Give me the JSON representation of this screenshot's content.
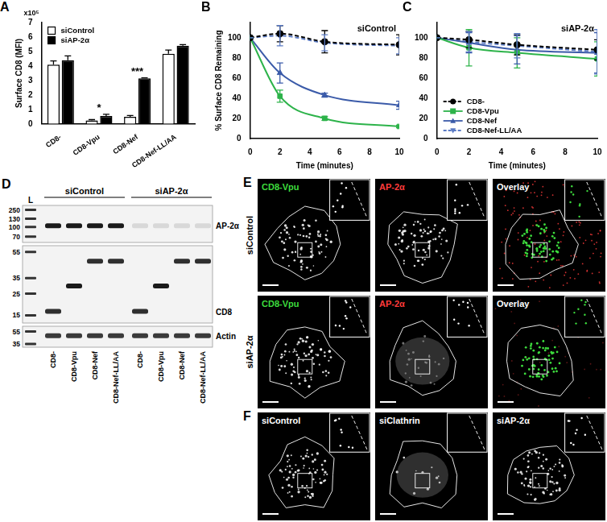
{
  "chart_data": [
    {
      "panel": "A",
      "type": "bar",
      "categories": [
        "CD8-",
        "CD8-Vpu",
        "CD8-Nef",
        "CD8-Nef-LL/AA"
      ],
      "series": [
        {
          "name": "siControl",
          "color": "#ffffff",
          "values": [
            4.1,
            0.25,
            0.5,
            4.85
          ],
          "errors": [
            0.25,
            0.05,
            0.08,
            0.25
          ]
        },
        {
          "name": "siAP-2α",
          "color": "#000000",
          "values": [
            4.4,
            0.55,
            3.15,
            5.4
          ],
          "errors": [
            0.3,
            0.12,
            0.03,
            0.08
          ]
        }
      ],
      "ylabel": "Surface CD8 (MFI)",
      "y_scale_label": "x10⁵",
      "ylim": [
        0,
        7
      ],
      "yticks": [
        0,
        1,
        2,
        3,
        4,
        5,
        6,
        7
      ],
      "grid": false,
      "legend": "upper left",
      "annotations": [
        {
          "text": "*",
          "category": "CD8-Vpu"
        },
        {
          "text": "***",
          "category": "CD8-Nef"
        }
      ]
    },
    {
      "panel": "B",
      "type": "line",
      "title": "siControl",
      "x": [
        0,
        2,
        5,
        10
      ],
      "series": [
        {
          "color": "#000000",
          "marker": "circle",
          "line_style": "dashed",
          "values": [
            100,
            104,
            96,
            93
          ],
          "errors": [
            0,
            8,
            11,
            10
          ]
        },
        {
          "color": "#2db34a",
          "marker": "square",
          "line_style": "solid",
          "values": [
            100,
            42,
            20,
            12
          ],
          "errors": [
            0,
            6,
            2,
            1
          ]
        },
        {
          "color": "#3b5ba9",
          "marker": "triangle",
          "line_style": "solid",
          "values": [
            100,
            65,
            43,
            33
          ],
          "errors": [
            0,
            10,
            2,
            4
          ]
        },
        {
          "color": "#5b7bc4",
          "marker": "triangle_down",
          "line_style": "dashed",
          "values": [
            100,
            102,
            95,
            92
          ],
          "errors": [
            0,
            10,
            8,
            8
          ]
        }
      ],
      "xlabel": "Time (minutes)",
      "ylabel": "% Surface CD8 Remaining",
      "xlim": [
        0,
        10
      ],
      "xticks": [
        0,
        2,
        4,
        6,
        8,
        10
      ],
      "ylim": [
        0,
        115
      ],
      "yticks": [
        0,
        20,
        40,
        60,
        80,
        100
      ],
      "grid": false
    },
    {
      "panel": "C",
      "type": "line",
      "title": "siAP-2α",
      "x": [
        0,
        2,
        5,
        10
      ],
      "series": [
        {
          "name": "CD8-",
          "color": "#000000",
          "marker": "circle",
          "line_style": "dashed",
          "values": [
            100,
            98,
            93,
            88
          ],
          "errors": [
            0,
            8,
            10,
            10
          ]
        },
        {
          "name": "CD8-Vpu",
          "color": "#2db34a",
          "marker": "square",
          "line_style": "solid",
          "values": [
            100,
            90,
            85,
            79
          ],
          "errors": [
            0,
            18,
            15,
            17
          ]
        },
        {
          "name": "CD8-Nef",
          "color": "#3b5ba9",
          "marker": "triangle",
          "line_style": "solid",
          "values": [
            100,
            95,
            88,
            85
          ],
          "errors": [
            0,
            10,
            14,
            20
          ]
        },
        {
          "name": "CD8-Nef-LL/AA",
          "color": "#5b7bc4",
          "marker": "triangle_down",
          "line_style": "dashed",
          "values": [
            100,
            96,
            92,
            86
          ],
          "errors": [
            0,
            10,
            12,
            22
          ]
        }
      ],
      "xlabel": "Time (minutes)",
      "xlim": [
        0,
        10
      ],
      "xticks": [
        0,
        2,
        4,
        6,
        8,
        10
      ],
      "ylim": [
        0,
        115
      ],
      "yticks": [
        0,
        20,
        40,
        60,
        80,
        100
      ],
      "grid": false,
      "legend": "lower left"
    }
  ],
  "blot": {
    "panel": "D",
    "ladder_label": "L",
    "groups": [
      "siControl",
      "siAP-2α"
    ],
    "lanes": [
      "CD8-",
      "CD8-Vpu",
      "CD8-Nef",
      "CD8-Nef-LL/AA"
    ],
    "blots": [
      {
        "label": "AP-2α",
        "markers": [
          250,
          130,
          100,
          70
        ]
      },
      {
        "label": "CD8",
        "markers": [
          55,
          35,
          25,
          15
        ]
      },
      {
        "label": "Actin",
        "markers": [
          55,
          35
        ]
      }
    ]
  },
  "microscopy": [
    {
      "panel": "E",
      "rows": [
        "siControl",
        "siAP-2α"
      ],
      "channels": [
        {
          "label": "CD8-Vpu",
          "color": "#3ddc3d"
        },
        {
          "label": "AP-2α",
          "color": "#ff3b3b"
        },
        {
          "label": "Overlay",
          "color": "#ffffff"
        }
      ]
    },
    {
      "panel": "F",
      "images": [
        "siControl",
        "siClathrin",
        "siAP-2α"
      ]
    }
  ]
}
